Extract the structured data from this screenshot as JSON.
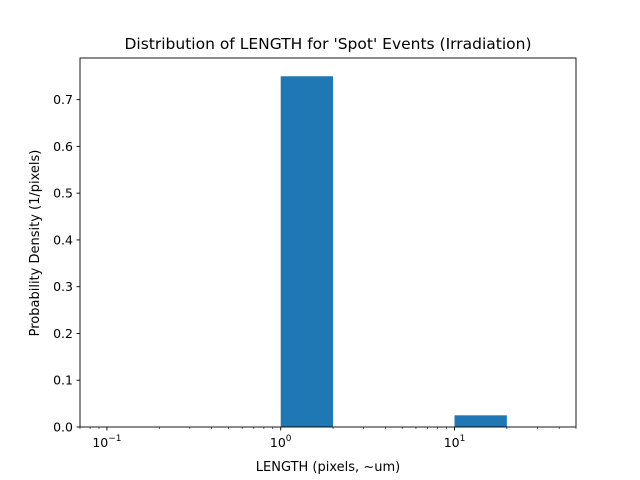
{
  "chart_data": {
    "type": "bar",
    "title": "Distribution of LENGTH for 'Spot' Events (Irradiation)",
    "xlabel": "LENGTH (pixels, ~um)",
    "ylabel": "Probability Density (1/pixels)",
    "xscale": "log",
    "xlim": [
      0.07,
      50
    ],
    "ylim": [
      0,
      0.789
    ],
    "grid": false,
    "legend": "none",
    "bar_color": "#1f77b4",
    "bins": [
      {
        "x_start": 1,
        "x_end": 2,
        "value": 0.75
      },
      {
        "x_start": 10,
        "x_end": 20,
        "value": 0.025
      }
    ],
    "x_ticks": [
      {
        "value": 0.1,
        "base": "10",
        "exp": "−1"
      },
      {
        "value": 1,
        "base": "10",
        "exp": "0"
      },
      {
        "value": 10,
        "base": "10",
        "exp": "1"
      }
    ],
    "y_ticks": [
      "0.0",
      "0.1",
      "0.2",
      "0.3",
      "0.4",
      "0.5",
      "0.6",
      "0.7"
    ]
  }
}
